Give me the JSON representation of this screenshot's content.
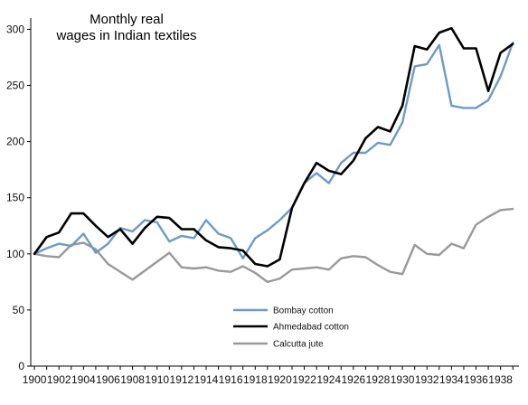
{
  "chart_data": {
    "type": "line",
    "title_lines": [
      "Monthly real",
      "wages in Indian textiles"
    ],
    "xlabel": "",
    "ylabel": "",
    "x": [
      1900,
      1901,
      1902,
      1903,
      1904,
      1905,
      1906,
      1907,
      1908,
      1909,
      1910,
      1911,
      1912,
      1913,
      1914,
      1915,
      1916,
      1917,
      1918,
      1919,
      1920,
      1921,
      1922,
      1923,
      1924,
      1925,
      1926,
      1927,
      1928,
      1929,
      1930,
      1931,
      1932,
      1933,
      1934,
      1935,
      1936,
      1937,
      1938,
      1939
    ],
    "x_ticks": [
      1900,
      1902,
      1904,
      1906,
      1908,
      1910,
      1912,
      1914,
      1916,
      1918,
      1920,
      1922,
      1924,
      1926,
      1928,
      1930,
      1932,
      1934,
      1936,
      1938
    ],
    "xlim": [
      1899.7,
      1939.5
    ],
    "ylim": [
      0,
      310
    ],
    "y_ticks": [
      0,
      50,
      100,
      150,
      200,
      250,
      300
    ],
    "grid": false,
    "legend_position": "bottom-right",
    "series": [
      {
        "name": "Bombay cotton",
        "color": "#6b9bc8",
        "values": [
          100,
          105,
          109,
          107,
          118,
          101,
          109,
          123,
          120,
          130,
          128,
          111,
          116,
          114,
          130,
          118,
          114,
          96,
          114,
          121,
          130,
          141,
          163,
          172,
          163,
          181,
          190,
          190,
          199,
          197,
          217,
          267,
          269,
          286,
          232,
          230,
          230,
          237,
          258,
          288
        ]
      },
      {
        "name": "Ahmedabad cotton",
        "color": "#000000",
        "values": [
          100,
          115,
          119,
          136,
          136,
          125,
          115,
          122,
          109,
          123,
          133,
          132,
          122,
          122,
          112,
          106,
          105,
          103,
          91,
          89,
          95,
          141,
          163,
          181,
          174,
          171,
          183,
          203,
          213,
          209,
          232,
          285,
          282,
          297,
          301,
          283,
          283,
          245,
          279,
          287
        ]
      },
      {
        "name": "Calcutta jute",
        "color": "#999999",
        "values": [
          100,
          98,
          97,
          108,
          110,
          104,
          91,
          84,
          77,
          85,
          93,
          101,
          88,
          87,
          88,
          85,
          84,
          89,
          83,
          75,
          78,
          86,
          87,
          88,
          86,
          96,
          98,
          97,
          90,
          84,
          82,
          108,
          100,
          99,
          109,
          105,
          126,
          133,
          139,
          140
        ]
      }
    ]
  }
}
